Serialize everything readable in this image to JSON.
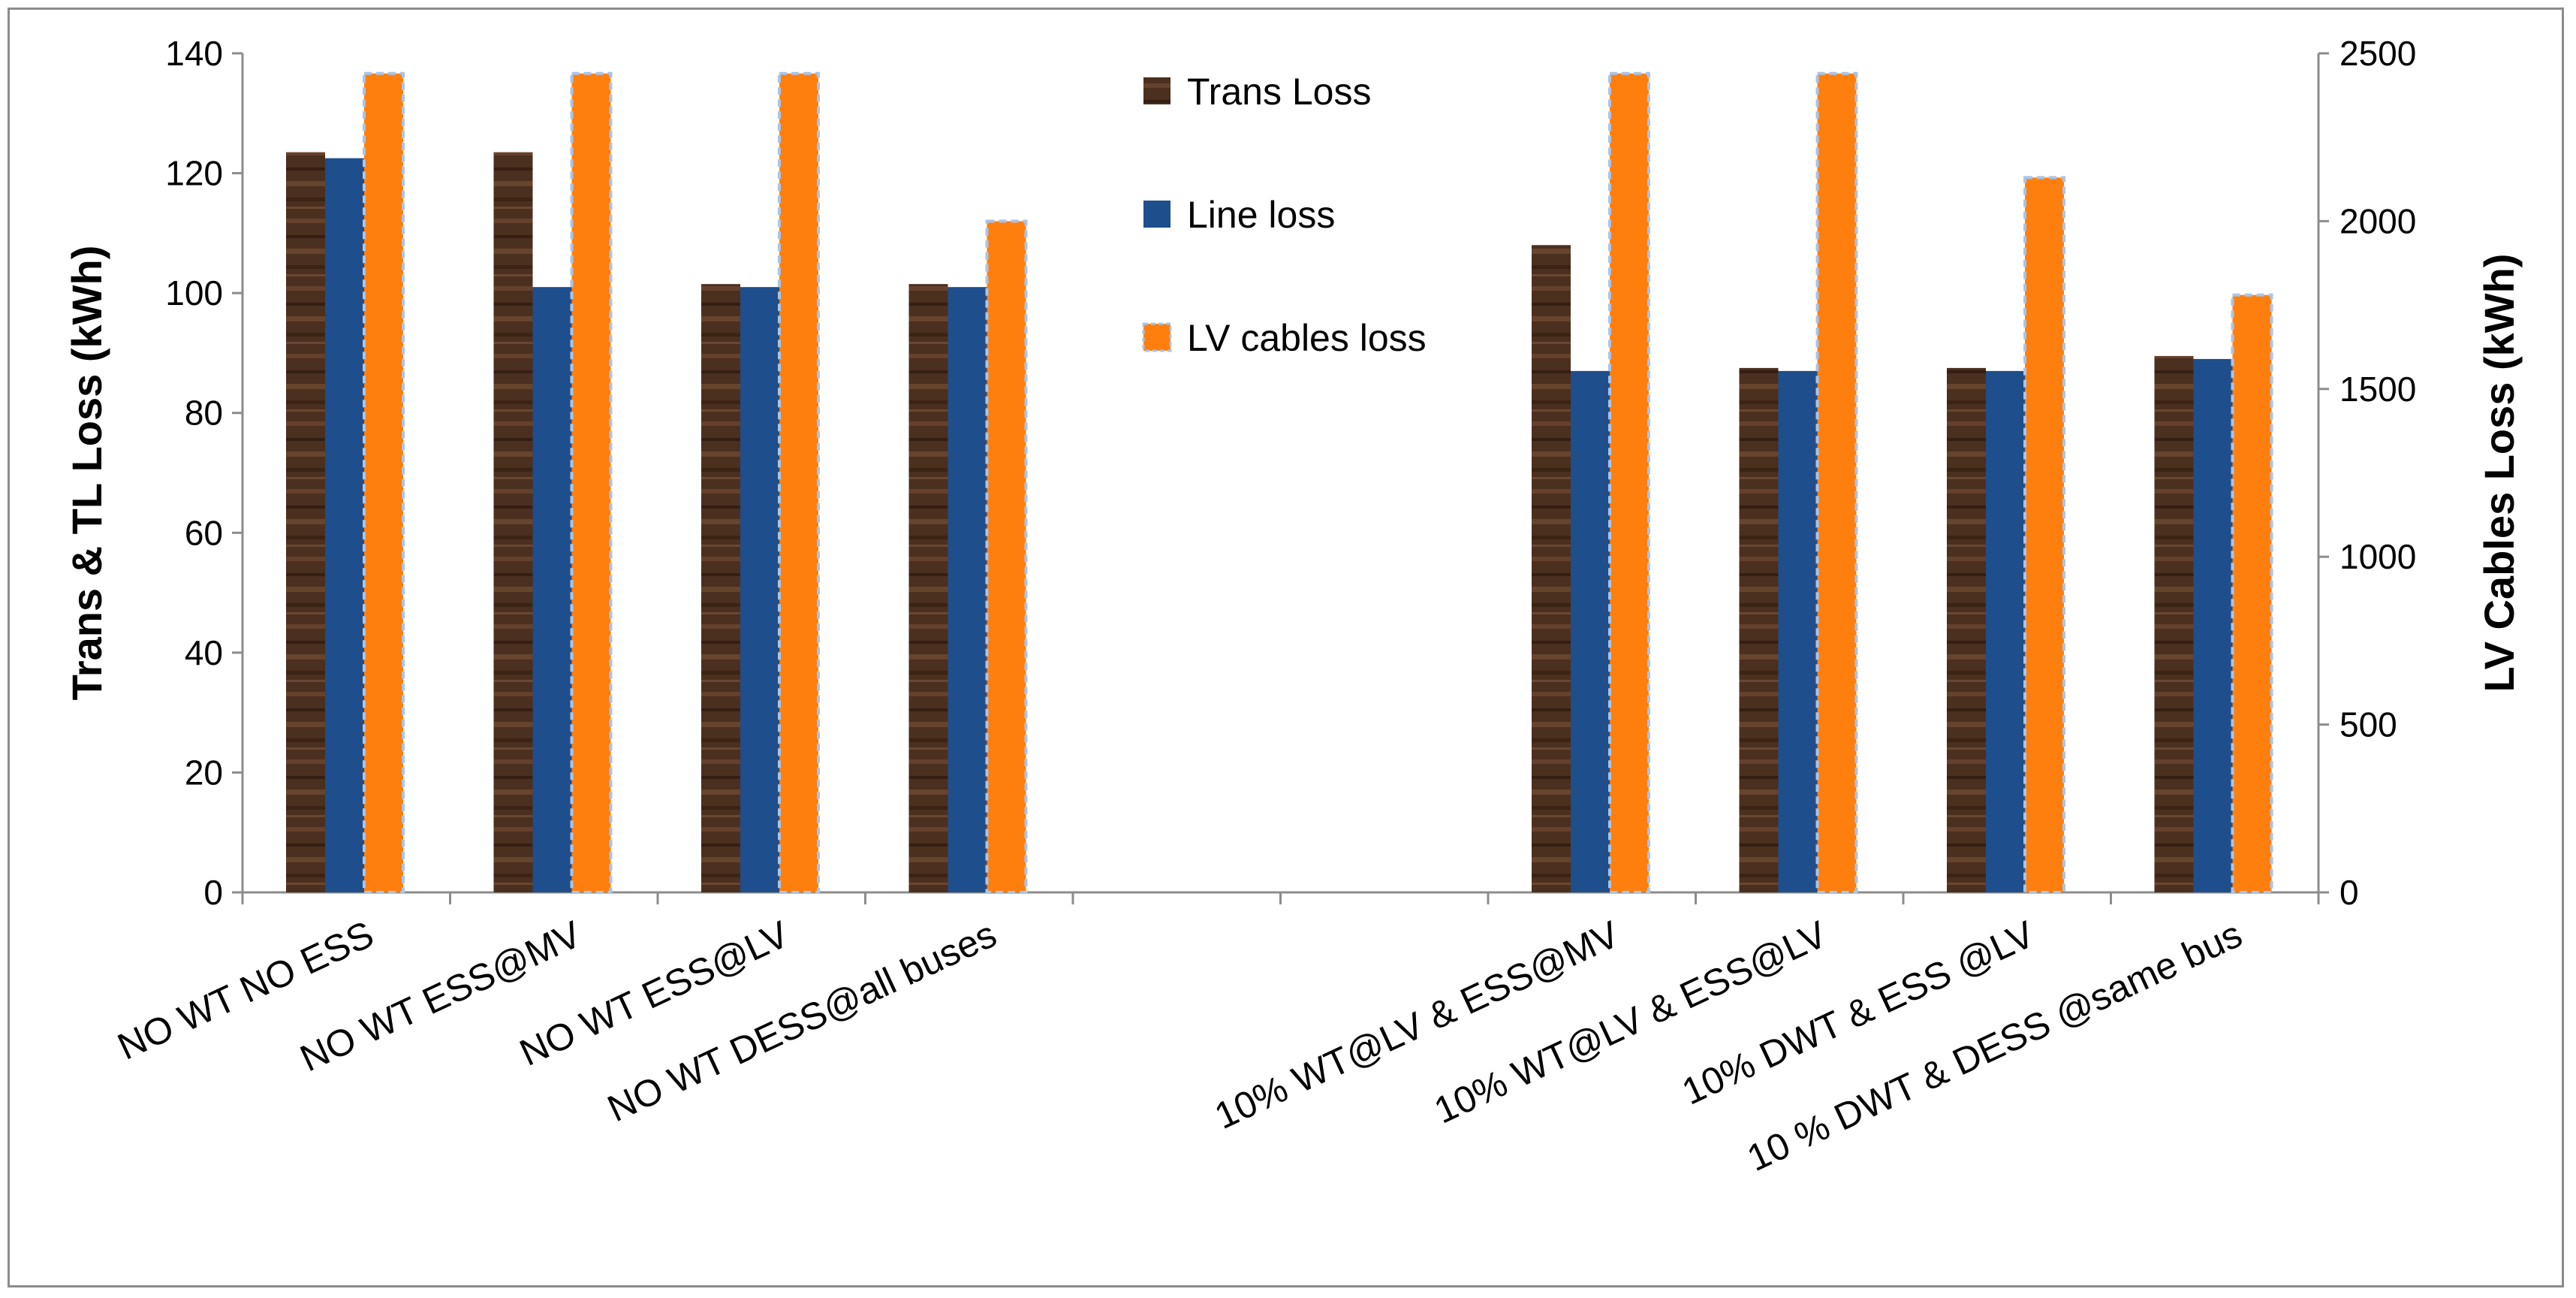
{
  "chart_data": {
    "type": "bar",
    "categories": [
      "NO WT NO ESS",
      "NO WT ESS@MV",
      "NO WT ESS@LV",
      "NO WT DESS@all buses",
      "",
      "",
      "10% WT@LV & ESS@MV",
      "10% WT@LV & ESS@LV",
      "10% DWT & ESS @LV",
      "10 % DWT &  DESS @same bus"
    ],
    "series": [
      {
        "name": "Trans Loss",
        "axis": "left",
        "color": "#4a2e1f",
        "values": [
          123.5,
          123.5,
          101.5,
          101.5,
          null,
          null,
          108,
          87.5,
          87.5,
          89.5
        ]
      },
      {
        "name": "Line loss",
        "axis": "left",
        "color": "#1f4e8c",
        "values": [
          122.5,
          101,
          101,
          101,
          null,
          null,
          87,
          87,
          87,
          89
        ]
      },
      {
        "name": "LV cables loss",
        "axis": "right",
        "color": "#ff7f0e",
        "values": [
          2440,
          2440,
          2440,
          2000,
          null,
          null,
          2440,
          2440,
          2130,
          1780
        ]
      }
    ],
    "ylabel": "Trans & TL Loss (kWh)",
    "y2label": "LV Cables Loss (kWh)",
    "ylim": [
      0,
      140
    ],
    "yticks": [
      "0",
      "20",
      "40",
      "60",
      "80",
      "100",
      "120",
      "140"
    ],
    "y2lim": [
      0,
      2500
    ],
    "y2ticks": [
      "0",
      "500",
      "1000",
      "1500",
      "2000",
      "2500"
    ],
    "legend_position": "top-center",
    "grid": false
  }
}
